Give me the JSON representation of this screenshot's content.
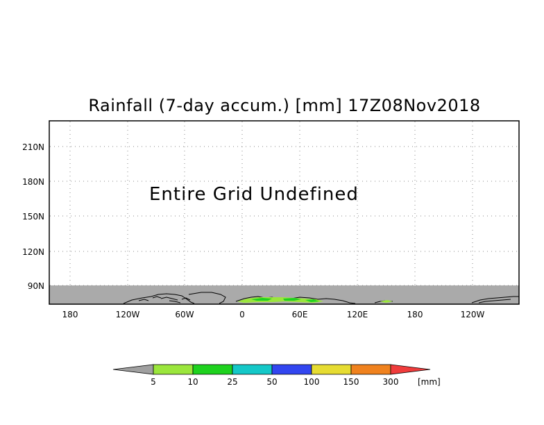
{
  "title": "Rainfall (7-day accum.) [mm] 17Z08Nov2018",
  "message": "Entire Grid Undefined",
  "lat_labels": [
    "210N",
    "180N",
    "150N",
    "120N",
    "90N"
  ],
  "lon_labels": [
    "180",
    "120W",
    "60W",
    "0",
    "60E",
    "120E",
    "180",
    "120W"
  ],
  "colorbar": {
    "unit": "[mm]",
    "ticks": [
      "5",
      "10",
      "25",
      "50",
      "100",
      "150",
      "300"
    ],
    "colors": [
      "#a0a0a0",
      "#9be63c",
      "#1ed21e",
      "#14c8c8",
      "#3246f0",
      "#e6dc32",
      "#f0821e",
      "#f03c3c"
    ]
  },
  "colors": {
    "undefined_band": "#aaaaaa",
    "grid": "#888888",
    "coast": "#000000",
    "rain_light": "#9be63c",
    "rain_mid": "#1ed21e"
  }
}
